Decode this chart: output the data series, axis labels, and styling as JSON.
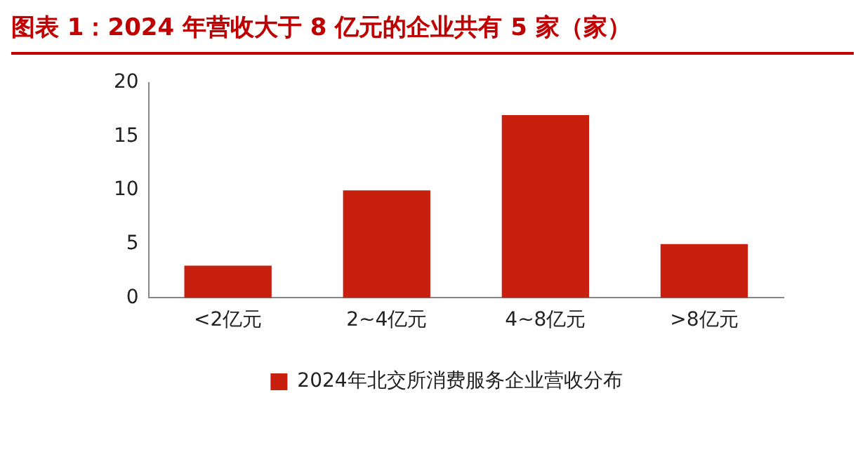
{
  "chart_data": {
    "type": "bar",
    "title": "图表 1：2024 年营收大于 8 亿元的企业共有 5 家（家）",
    "categories": [
      "<2亿元",
      "2~4亿元",
      "4~8亿元",
      ">8亿元"
    ],
    "series": [
      {
        "name": "2024年北交所消费服务企业营收分布",
        "color": "#c8200e",
        "values": [
          3,
          10,
          17,
          5
        ]
      }
    ],
    "ylim": [
      0,
      20
    ],
    "yticks": [
      0,
      5,
      10,
      15,
      20
    ],
    "grid": false,
    "legend": "bottom"
  }
}
